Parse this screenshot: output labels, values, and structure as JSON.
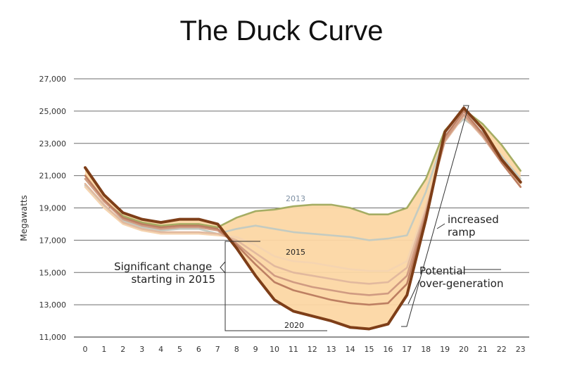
{
  "title": "The Duck Curve",
  "chart_data": {
    "type": "line",
    "title": "The Duck Curve",
    "ylabel": "Megawatts",
    "xlabel": "",
    "x": [
      0,
      1,
      2,
      3,
      4,
      5,
      6,
      7,
      8,
      9,
      10,
      11,
      12,
      13,
      14,
      15,
      16,
      17,
      18,
      19,
      20,
      21,
      22,
      23
    ],
    "ylim": [
      11000,
      27000
    ],
    "yticks": [
      11000,
      13000,
      15000,
      17000,
      19000,
      21000,
      23000,
      25000,
      27000
    ],
    "ytick_labels": [
      "11,000",
      "13,000",
      "15,000",
      "17,000",
      "19,000",
      "21,000",
      "23,000",
      "25,000",
      "27,000"
    ],
    "grid": "horizontal",
    "series": [
      {
        "name": "2013",
        "color": "#a5ad63",
        "values": [
          20800,
          19400,
          18500,
          18100,
          17900,
          18000,
          18000,
          17800,
          18400,
          18800,
          18900,
          19100,
          19200,
          19200,
          19000,
          18600,
          18600,
          19000,
          20800,
          23800,
          25100,
          24200,
          22900,
          21300
        ]
      },
      {
        "values": [
          20400,
          19100,
          18200,
          17800,
          17600,
          17700,
          17700,
          17400,
          17700,
          17900,
          17700,
          17500,
          17400,
          17300,
          17200,
          17000,
          17100,
          17300,
          20000,
          23500,
          24500,
          23700,
          22200,
          20800
        ],
        "color": "#c4cbc1"
      },
      {
        "name": "2015",
        "color": "#f5d4b0",
        "values": [
          20300,
          19000,
          18000,
          17600,
          17400,
          17400,
          17400,
          17300,
          17200,
          16700,
          16000,
          15700,
          15600,
          15400,
          15200,
          15100,
          15100,
          15700,
          19200,
          23300,
          24700,
          23500,
          21900,
          20500
        ]
      },
      {
        "values": [
          20500,
          19200,
          18100,
          17700,
          17500,
          17500,
          17500,
          17400,
          17000,
          16200,
          15400,
          15000,
          14800,
          14600,
          14400,
          14300,
          14400,
          15300,
          18900,
          23100,
          24700,
          23400,
          21800,
          20300
        ],
        "color": "#e2b99e"
      },
      {
        "values": [
          20800,
          19400,
          18300,
          17900,
          17700,
          17800,
          17800,
          17600,
          16800,
          15800,
          14800,
          14400,
          14100,
          13900,
          13700,
          13600,
          13700,
          14800,
          18700,
          23200,
          24800,
          23500,
          21800,
          20300
        ],
        "color": "#d09b82"
      },
      {
        "values": [
          21000,
          19500,
          18400,
          18000,
          17800,
          17900,
          17900,
          17700,
          16700,
          15500,
          14400,
          13900,
          13600,
          13300,
          13100,
          13000,
          13100,
          14300,
          18500,
          23400,
          25000,
          23600,
          21800,
          20300
        ],
        "color": "#bd7f62"
      },
      {
        "name": "2020",
        "color": "#7e3e18",
        "values": [
          21500,
          19800,
          18700,
          18300,
          18100,
          18300,
          18300,
          18000,
          16500,
          14800,
          13300,
          12600,
          12300,
          12000,
          11600,
          11500,
          11800,
          13600,
          18300,
          23700,
          25200,
          23900,
          22000,
          20600
        ]
      }
    ],
    "annotations": {
      "significant_change": "Significant change\nstarting in 2015",
      "increased_ramp": "increased\nramp",
      "potential_overgeneration": "Potential\nover-generation"
    }
  },
  "colors": {
    "fill": "#fcd7a4",
    "grid": "#6e6e6e",
    "axis": "#444444"
  }
}
